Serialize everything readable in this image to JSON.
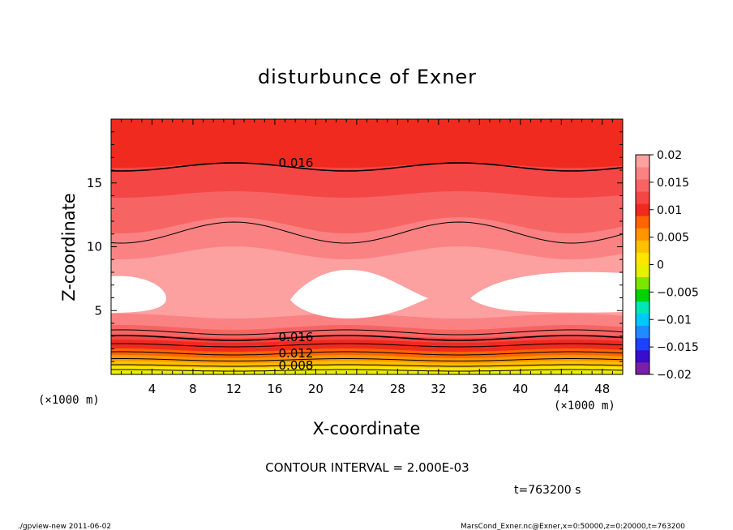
{
  "chart_data": {
    "type": "contour",
    "title": "disturbunce of Exner",
    "xlabel": "X-coordinate",
    "ylabel": "Z-coordinate",
    "x_unit": "(×1000 m)",
    "y_unit": "(×1000 m)",
    "xlim": [
      0,
      50
    ],
    "ylim": [
      0,
      20
    ],
    "x_ticks": [
      4,
      8,
      12,
      16,
      20,
      24,
      28,
      32,
      36,
      40,
      44,
      48
    ],
    "y_ticks": [
      5,
      10,
      15
    ],
    "contour_interval_text": "CONTOUR INTERVAL = 2.000E-03",
    "time_text": "t=763200 s",
    "contour_labels": [
      "0.016",
      "0.016",
      "0.012",
      "0.008"
    ],
    "colorbar": {
      "ticks": [
        "0.02",
        "0.015",
        "0.01",
        "0.005",
        "0",
        "−0.005",
        "−0.01",
        "−0.015",
        "−0.02"
      ],
      "range": [
        -0.02,
        0.02
      ],
      "colors": [
        "#7a1fa8",
        "#3a0ccc",
        "#1e40ff",
        "#1e8cff",
        "#00c8ff",
        "#00e6b4",
        "#00d200",
        "#7de600",
        "#e6f000",
        "#ffe600",
        "#ffc000",
        "#ff9600",
        "#ff6400",
        "#f02a1e",
        "#f54646",
        "#f76464",
        "#fa8282",
        "#fca0a0"
      ]
    }
  },
  "footer": {
    "left": "./gpview-new   2011-06-02",
    "right": "MarsCond_Exner.nc@Exner,x=0:50000,z=0:20000,t=763200"
  }
}
